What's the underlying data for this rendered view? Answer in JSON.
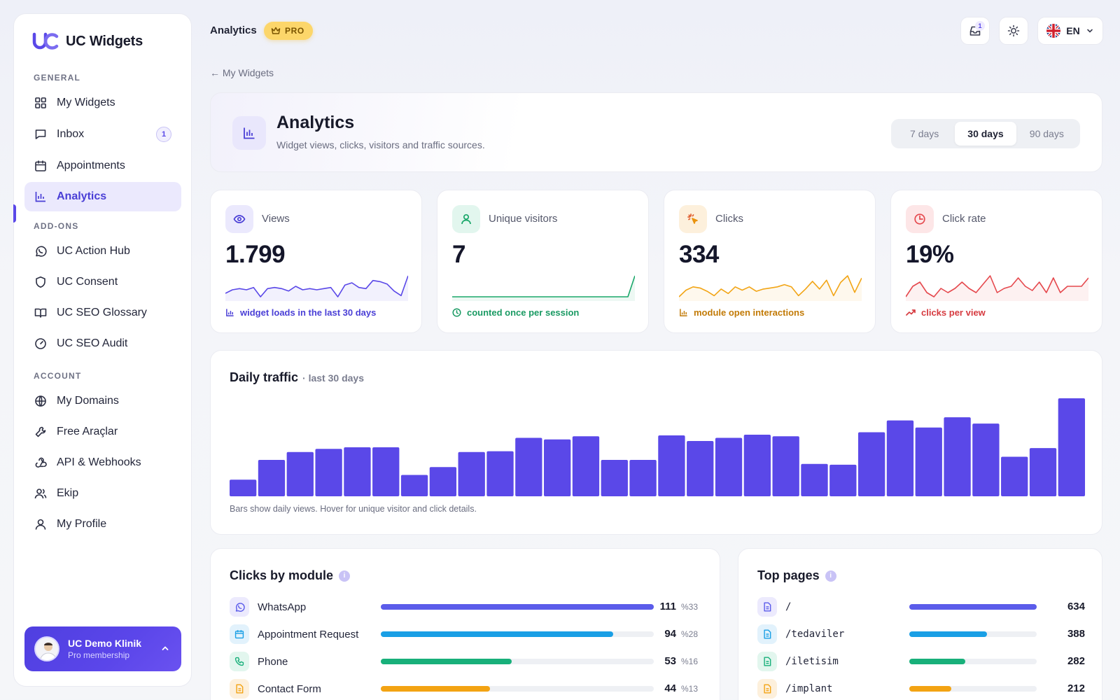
{
  "app": {
    "name": "UC Widgets"
  },
  "sidebar": {
    "sections": {
      "general": "GENERAL",
      "addons": "ADD-ONS",
      "account": "ACCOUNT"
    },
    "items": [
      {
        "id": "my-widgets",
        "label": "My Widgets",
        "icon": "grid-icon"
      },
      {
        "id": "inbox",
        "label": "Inbox",
        "icon": "chat-icon",
        "badge": "1"
      },
      {
        "id": "appointments",
        "label": "Appointments",
        "icon": "calendar-icon"
      },
      {
        "id": "analytics",
        "label": "Analytics",
        "icon": "bar-chart-icon",
        "active": true
      },
      {
        "id": "uc-action-hub",
        "label": "UC Action Hub",
        "icon": "whatsapp-icon"
      },
      {
        "id": "uc-consent",
        "label": "UC Consent",
        "icon": "shield-icon"
      },
      {
        "id": "uc-seo-glossary",
        "label": "UC SEO Glossary",
        "icon": "book-icon"
      },
      {
        "id": "uc-seo-audit",
        "label": "UC SEO Audit",
        "icon": "gauge-icon"
      },
      {
        "id": "my-domains",
        "label": "My Domains",
        "icon": "globe-icon"
      },
      {
        "id": "free-tools",
        "label": "Free Araçlar",
        "icon": "tools-icon"
      },
      {
        "id": "api-webhooks",
        "label": "API & Webhooks",
        "icon": "webhook-icon"
      },
      {
        "id": "team",
        "label": "Ekip",
        "icon": "team-icon"
      },
      {
        "id": "my-profile",
        "label": "My Profile",
        "icon": "user-icon"
      }
    ],
    "profile": {
      "name": "UC Demo Klinik",
      "subtitle": "Pro membership"
    }
  },
  "topbar": {
    "title": "Analytics",
    "pro_badge": "PRO",
    "notifications_count": "1",
    "language": "EN"
  },
  "back_link": "← My Widgets",
  "header": {
    "title": "Analytics",
    "subtitle": "Widget views, clicks, visitors and traffic sources.",
    "ranges": [
      {
        "label": "7 days",
        "active": false
      },
      {
        "label": "30 days",
        "active": true
      },
      {
        "label": "90 days",
        "active": false
      }
    ]
  },
  "stats": [
    {
      "id": "views",
      "label": "Views",
      "value": "1.799",
      "footer": "widget loads in the last 30 days",
      "color": "#5a48e8",
      "spark": [
        19,
        22,
        23,
        22,
        24,
        16,
        23,
        24,
        23,
        21,
        25,
        22,
        23,
        22,
        23,
        24,
        16,
        26,
        28,
        24,
        23,
        30,
        29,
        27,
        21,
        17,
        34
      ]
    },
    {
      "id": "unique-visitors",
      "label": "Unique visitors",
      "value": "7",
      "footer": "counted once per session",
      "color": "#1aa76a",
      "spark": [
        1,
        1,
        1,
        1,
        1,
        1,
        1,
        1,
        1,
        1,
        1,
        1,
        1,
        1,
        1,
        1,
        1,
        1,
        1,
        1,
        1,
        1,
        1,
        1,
        1,
        1,
        7
      ]
    },
    {
      "id": "clicks",
      "label": "Clicks",
      "value": "334",
      "footer": "module open interactions",
      "color": "#f2a516",
      "spark": [
        8,
        14,
        17,
        16,
        13,
        9,
        15,
        11,
        17,
        14,
        17,
        13,
        15,
        16,
        17,
        19,
        17,
        9,
        15,
        22,
        15,
        23,
        9,
        21,
        27,
        12,
        25
      ]
    },
    {
      "id": "click-rate",
      "label": "Click rate",
      "value": "19%",
      "footer": "clicks per view",
      "color": "#e5484d",
      "spark": [
        19,
        24,
        26,
        21,
        19,
        23,
        21,
        23,
        26,
        23,
        21,
        25,
        29,
        21,
        23,
        24,
        28,
        24,
        22,
        26,
        21,
        28,
        21,
        24,
        24,
        24,
        28
      ]
    }
  ],
  "traffic": {
    "title": "Daily traffic",
    "subtitle": "· last 30 days",
    "note": "Bars show daily views. Hover for unique visitor and click details."
  },
  "chart_data": {
    "type": "bar",
    "title": "Daily traffic",
    "subtitle": "· last 30 days",
    "values": [
      21,
      46,
      56,
      60,
      62,
      62,
      27,
      37,
      56,
      57,
      74,
      72,
      76,
      46,
      46,
      77,
      70,
      74,
      78,
      76,
      41,
      40,
      81,
      96,
      87,
      100,
      92,
      50,
      61,
      124
    ],
    "color": "#5a48e8"
  },
  "clicks_by_module": {
    "title": "Clicks by module",
    "rows": [
      {
        "label": "WhatsApp",
        "icon": "whatsapp-icon",
        "value": "111",
        "pct": "%33",
        "fraction": 1.0,
        "color": "#5b5cea",
        "bg": "#eceafd"
      },
      {
        "label": "Appointment Request",
        "icon": "calendar-icon",
        "value": "94",
        "pct": "%28",
        "fraction": 0.85,
        "color": "#1a9fe5",
        "bg": "#e2f2fc"
      },
      {
        "label": "Phone",
        "icon": "phone-icon",
        "value": "53",
        "pct": "%16",
        "fraction": 0.48,
        "color": "#18b07a",
        "bg": "#e2f6ee"
      },
      {
        "label": "Contact Form",
        "icon": "form-icon",
        "value": "44",
        "pct": "%13",
        "fraction": 0.4,
        "color": "#f3a313",
        "bg": "#fdf0dc"
      }
    ]
  },
  "top_pages": {
    "title": "Top pages",
    "rows": [
      {
        "label": "/",
        "value": "634",
        "fraction": 1.0,
        "color": "#5b5cea",
        "bg": "#eceafd"
      },
      {
        "label": "/tedaviler",
        "value": "388",
        "fraction": 0.61,
        "color": "#1a9fe5",
        "bg": "#e2f2fc"
      },
      {
        "label": "/iletisim",
        "value": "282",
        "fraction": 0.44,
        "color": "#18b07a",
        "bg": "#e2f6ee"
      },
      {
        "label": "/implant",
        "value": "212",
        "fraction": 0.33,
        "color": "#f3a313",
        "bg": "#fdf0dc"
      }
    ]
  }
}
